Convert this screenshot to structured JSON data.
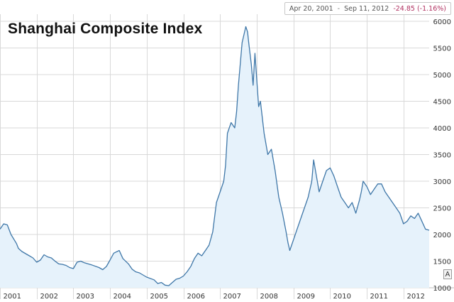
{
  "header": {
    "range_start": "Apr 20, 2001",
    "range_sep": "-",
    "range_end": "Sep 11, 2012",
    "change": "-24.85 (-1.16%)"
  },
  "zoom_label": "A",
  "colors": {
    "line": "#3f77a8",
    "fill": "#e6f2fb",
    "grid": "#d9d9d9",
    "change": "#b03060"
  },
  "chart_data": {
    "type": "area",
    "title": "Shanghai Composite Index",
    "xlabel": "",
    "ylabel": "",
    "x_ticks": [
      "2001",
      "2002",
      "2003",
      "2004",
      "2005",
      "2006",
      "2007",
      "2008",
      "2009",
      "2010",
      "2011",
      "2012"
    ],
    "y_ticks": [
      "1000",
      "1500",
      "2000",
      "2500",
      "3000",
      "3500",
      "4000",
      "4500",
      "5000",
      "5500",
      "6000"
    ],
    "ylim": [
      1000,
      6000
    ],
    "xlim": [
      2001.0,
      2012.7
    ],
    "grid": true,
    "legend": "none",
    "series": [
      {
        "x": [
          2001.0,
          2001.1,
          2001.2,
          2001.3,
          2001.45,
          2001.5,
          2001.6,
          2001.7,
          2001.8,
          2001.9,
          2002.0,
          2002.1,
          2002.2,
          2002.3,
          2002.4,
          2002.5,
          2002.6,
          2002.7,
          2002.8,
          2002.9,
          2003.0,
          2003.1,
          2003.2,
          2003.3,
          2003.5,
          2003.7,
          2003.8,
          2003.9,
          2004.0,
          2004.1,
          2004.25,
          2004.35,
          2004.5,
          2004.6,
          2004.7,
          2004.8,
          2005.0,
          2005.2,
          2005.3,
          2005.4,
          2005.5,
          2005.6,
          2005.7,
          2005.8,
          2005.9,
          2006.0,
          2006.1,
          2006.2,
          2006.3,
          2006.4,
          2006.5,
          2006.6,
          2006.7,
          2006.8,
          2006.9,
          2007.0,
          2007.1,
          2007.15,
          2007.2,
          2007.3,
          2007.4,
          2007.45,
          2007.5,
          2007.6,
          2007.7,
          2007.75,
          2007.78,
          2007.85,
          2007.9,
          2007.95,
          2008.0,
          2008.05,
          2008.1,
          2008.2,
          2008.3,
          2008.4,
          2008.5,
          2008.6,
          2008.7,
          2008.8,
          2008.85,
          2008.9,
          2009.0,
          2009.1,
          2009.2,
          2009.3,
          2009.4,
          2009.5,
          2009.55,
          2009.6,
          2009.7,
          2009.8,
          2009.9,
          2010.0,
          2010.1,
          2010.2,
          2010.3,
          2010.4,
          2010.5,
          2010.6,
          2010.7,
          2010.8,
          2010.85,
          2010.9,
          2011.0,
          2011.1,
          2011.2,
          2011.3,
          2011.4,
          2011.5,
          2011.6,
          2011.7,
          2011.8,
          2011.9,
          2012.0,
          2012.1,
          2012.2,
          2012.3,
          2012.4,
          2012.5,
          2012.6,
          2012.7
        ],
        "values": [
          2100,
          2200,
          2180,
          2000,
          1830,
          1740,
          1680,
          1640,
          1600,
          1560,
          1480,
          1520,
          1620,
          1580,
          1560,
          1500,
          1450,
          1440,
          1420,
          1380,
          1360,
          1480,
          1500,
          1470,
          1430,
          1380,
          1340,
          1400,
          1520,
          1650,
          1700,
          1550,
          1450,
          1350,
          1300,
          1280,
          1200,
          1150,
          1080,
          1100,
          1050,
          1040,
          1100,
          1160,
          1180,
          1220,
          1300,
          1400,
          1550,
          1650,
          1600,
          1700,
          1800,
          2050,
          2600,
          2800,
          3000,
          3300,
          3900,
          4100,
          4000,
          4300,
          4800,
          5600,
          5900,
          5800,
          5600,
          5200,
          4800,
          5400,
          4900,
          4400,
          4500,
          3900,
          3500,
          3600,
          3200,
          2700,
          2400,
          2050,
          1850,
          1700,
          1900,
          2100,
          2300,
          2500,
          2700,
          3000,
          3400,
          3200,
          2800,
          3000,
          3200,
          3250,
          3100,
          2900,
          2700,
          2600,
          2500,
          2600,
          2400,
          2650,
          2800,
          3000,
          2900,
          2750,
          2850,
          2950,
          2950,
          2800,
          2700,
          2600,
          2500,
          2400,
          2200,
          2250,
          2350,
          2300,
          2400,
          2250,
          2100,
          2080
        ]
      }
    ]
  }
}
